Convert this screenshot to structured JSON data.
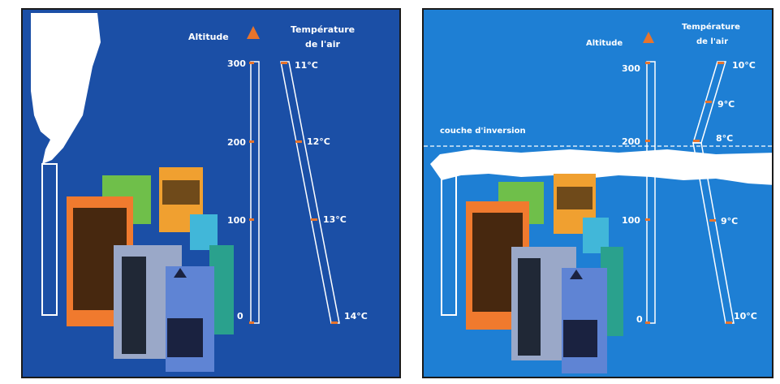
{
  "left_panel": {
    "altitude_label": "Altitude",
    "temperature_label_line1": "Température",
    "temperature_label_line2": "de l'air",
    "altitude_ticks": [
      "300",
      "200",
      "100",
      "0"
    ],
    "temperatures": [
      "11°C",
      "12°C",
      "13°C",
      "14°C"
    ]
  },
  "right_panel": {
    "altitude_label": "Altitude",
    "temperature_label_line1": "Température",
    "temperature_label_line2": "de l'air",
    "inversion_label": "couche d'inversion",
    "altitude_ticks": [
      "300",
      "200",
      "100",
      "0"
    ],
    "temperatures": [
      "10°C",
      "9°C",
      "8°C",
      "9°C",
      "10°C"
    ]
  },
  "colors": {
    "left_background": "#1b4fa6",
    "right_background": "#1e7fd4",
    "marker": "#e8742c",
    "smoke": "#ffffff"
  }
}
